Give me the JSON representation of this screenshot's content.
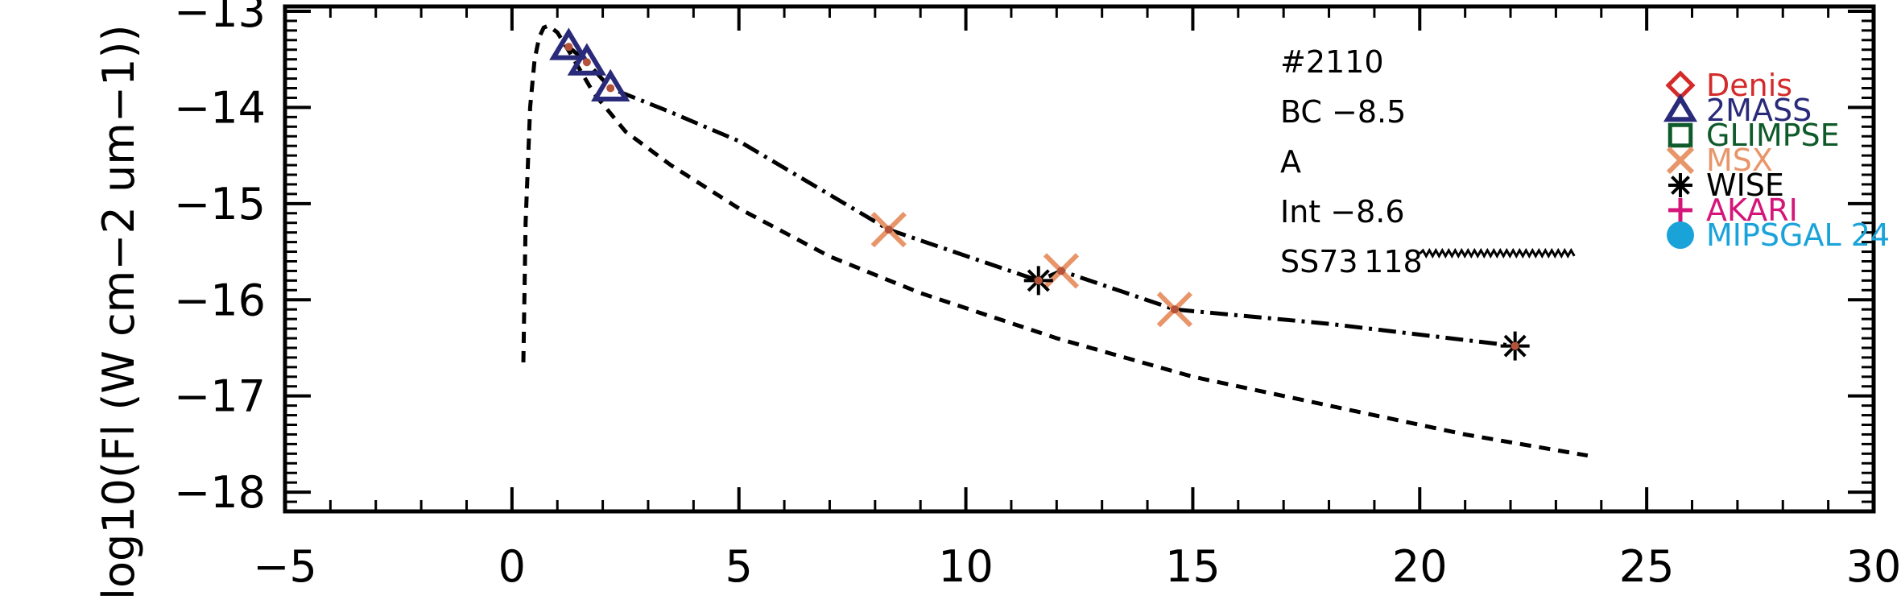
{
  "chart_data": {
    "type": "scatter",
    "ylabel": "log10(Fl (W cm−2 um−1))",
    "xlim": [
      -5,
      30
    ],
    "ylim": [
      -18.2,
      -12.95
    ],
    "x_ticks": [
      -5,
      0,
      5,
      10,
      15,
      20,
      25,
      30
    ],
    "x_tick_labels": [
      "−5",
      "0",
      "5",
      "10",
      "15",
      "20",
      "25",
      "30"
    ],
    "y_ticks": [
      -18,
      -17,
      -16,
      -15,
      -14,
      -13
    ],
    "y_tick_labels": [
      "−18",
      "−17",
      "−16",
      "−15",
      "−14",
      "−13"
    ],
    "annotations": [
      "#2110",
      "BC −8.5",
      "A",
      "Int −8.6",
      "SS73 118"
    ],
    "legend": [
      {
        "name": "Denis",
        "color": "#d42a2a",
        "marker": "diamond"
      },
      {
        "name": "2MASS",
        "color": "#2a2a7a",
        "marker": "triangle"
      },
      {
        "name": "GLIMPSE",
        "color": "#0f5a2a",
        "marker": "square"
      },
      {
        "name": "MSX",
        "color": "#e8956a",
        "marker": "x"
      },
      {
        "name": "WISE",
        "color": "#000000",
        "marker": "asterisk"
      },
      {
        "name": "AKARI",
        "color": "#d4157a",
        "marker": "plus"
      },
      {
        "name": "MIPSGAL 24",
        "color": "#1aa3d9",
        "marker": "circle"
      }
    ],
    "series": [
      {
        "name": "2MASS",
        "marker": "triangle",
        "color": "#2a2a7a",
        "x": [
          1.25,
          1.65,
          2.17
        ],
        "y": [
          -13.37,
          -13.53,
          -13.8
        ]
      },
      {
        "name": "MSX",
        "marker": "x",
        "color": "#e8956a",
        "x": [
          8.3,
          12.1,
          14.6
        ],
        "y": [
          -15.27,
          -15.7,
          -16.1
        ]
      },
      {
        "name": "WISE",
        "marker": "asterisk",
        "color": "#000000",
        "x": [
          11.6,
          22.1
        ],
        "y": [
          -15.8,
          -16.48
        ]
      },
      {
        "name": "observed points",
        "marker": "dot",
        "color": "#b5533a",
        "x": [
          1.25,
          1.65,
          2.17,
          8.3,
          11.6,
          12.1,
          14.6,
          22.1
        ],
        "y": [
          -13.37,
          -13.53,
          -13.8,
          -15.27,
          -15.8,
          -15.7,
          -16.1,
          -16.48
        ]
      }
    ],
    "curves": [
      {
        "name": "model-dashed",
        "style": "dashed",
        "x": [
          0.25,
          0.3,
          0.4,
          0.5,
          0.6,
          0.7,
          0.8,
          1.0,
          1.3,
          1.8,
          2.5,
          3.5,
          5.0,
          7.0,
          9.0,
          12.0,
          15.0,
          18.0,
          21.0,
          23.7
        ],
        "y": [
          -16.65,
          -15.2,
          -14.0,
          -13.5,
          -13.27,
          -13.17,
          -13.15,
          -13.22,
          -13.45,
          -13.85,
          -14.25,
          -14.6,
          -15.05,
          -15.55,
          -15.93,
          -16.4,
          -16.8,
          -17.1,
          -17.4,
          -17.62
        ]
      },
      {
        "name": "fit-dashdot",
        "style": "dashdot",
        "x": [
          1.25,
          1.65,
          2.17,
          3.5,
          5.0,
          8.3,
          11.6,
          12.1,
          14.6,
          18.0,
          22.1
        ],
        "y": [
          -13.37,
          -13.53,
          -13.8,
          -14.05,
          -14.35,
          -15.27,
          -15.8,
          -15.7,
          -16.1,
          -16.25,
          -16.48
        ]
      },
      {
        "name": "wavy-line",
        "style": "wavy",
        "x": [
          20.0,
          23.3
        ],
        "y": [
          -15.52,
          -15.52
        ]
      }
    ]
  }
}
